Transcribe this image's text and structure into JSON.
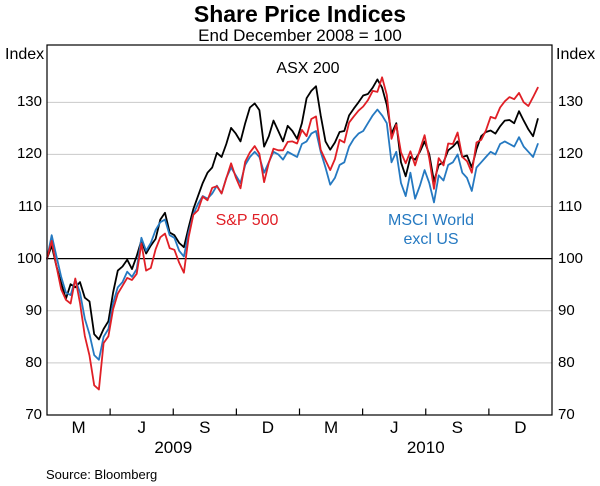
{
  "page": {
    "title": "Share Price Indices",
    "subtitle": "End December 2008 = 100",
    "source": "Source: Bloomberg",
    "y_axis_label_left": "Index",
    "y_axis_label_right": "Index"
  },
  "chart_data": {
    "type": "line",
    "title": "Share Price Indices",
    "subtitle": "End December 2008 = 100",
    "source": "Source: Bloomberg",
    "legend_position": "inline-annotations",
    "grid": true,
    "y_axis": {
      "label": "Index",
      "ticks": [
        70,
        80,
        90,
        100,
        110,
        120,
        130
      ],
      "gridlines": [
        80,
        90,
        110,
        120,
        130
      ],
      "reference_line": 100,
      "ylim": [
        70,
        141
      ],
      "gridline_color": "#c9c9c9"
    },
    "x_axis": {
      "unit": "months since end December 2008",
      "xlim": [
        0,
        24
      ],
      "quarter_ticks": [
        3,
        6,
        9,
        12,
        15,
        18,
        21
      ],
      "month_labels": [
        {
          "text": "M",
          "month": 1.5
        },
        {
          "text": "J",
          "month": 4.5
        },
        {
          "text": "S",
          "month": 7.5
        },
        {
          "text": "D",
          "month": 10.5
        },
        {
          "text": "M",
          "month": 13.5
        },
        {
          "text": "J",
          "month": 16.5
        },
        {
          "text": "S",
          "month": 19.5
        },
        {
          "text": "D",
          "month": 22.5
        }
      ],
      "year_labels": [
        {
          "text": "2009",
          "month": 6
        },
        {
          "text": "2010",
          "month": 18
        }
      ]
    },
    "series": [
      {
        "name": "ASX 200",
        "color": "#000000",
        "start_month": 0,
        "month_step": 0.2243,
        "values": [
          100,
          102.5,
          98.6,
          95.3,
          92.3,
          95.1,
          94.5,
          95.5,
          92.5,
          91.8,
          85.5,
          84.5,
          86.5,
          88.0,
          93.5,
          97.7,
          98.5,
          99.8,
          98.0,
          100.5,
          103.5,
          101.0,
          102.5,
          103.8,
          107.5,
          108.8,
          105.0,
          104.5,
          103.0,
          102.2,
          106.0,
          109.5,
          112.0,
          114.5,
          116.5,
          117.5,
          120.3,
          119.5,
          122.0,
          125.1,
          124.0,
          122.5,
          126.0,
          129.0,
          129.8,
          128.5,
          121.5,
          123.5,
          126.5,
          124.5,
          122.5,
          125.5,
          124.5,
          123.0,
          126.0,
          130.8,
          132.2,
          133.1,
          127.5,
          122.5,
          120.9,
          122.3,
          124.3,
          124.5,
          127.5,
          128.8,
          130.0,
          131.3,
          131.6,
          132.8,
          134.4,
          132.8,
          129.5,
          124.0,
          126.0,
          118.5,
          115.8,
          119.5,
          119.0,
          120.5,
          122.5,
          120.0,
          114.8,
          118.0,
          118.5,
          120.8,
          121.5,
          122.5,
          119.5,
          119.8,
          117.5,
          121.0,
          123.5,
          124.3,
          124.6,
          124.0,
          125.4,
          126.5,
          126.6,
          126.0,
          128.3,
          126.5,
          124.8,
          123.5,
          126.8
        ]
      },
      {
        "name": "S&P 500",
        "color": "#e01f26",
        "start_month": 0,
        "month_step": 0.2243,
        "values": [
          100,
          103.4,
          98.6,
          94.1,
          92.1,
          91.4,
          96.2,
          91.5,
          85.2,
          81.4,
          75.7,
          74.9,
          83.8,
          85.1,
          90.3,
          93.3,
          94.8,
          96.3,
          95.9,
          97.1,
          102.9,
          97.7,
          98.2,
          101.8,
          104.1,
          104.8,
          102.0,
          101.7,
          99.2,
          97.3,
          104.1,
          108.4,
          109.3,
          111.9,
          111.2,
          113.6,
          113.9,
          112.5,
          115.4,
          118.3,
          115.6,
          113.5,
          118.6,
          120.4,
          121.6,
          120.1,
          114.7,
          118.4,
          121.1,
          120.8,
          120.8,
          122.4,
          122.5,
          122.1,
          124.7,
          123.5,
          126.8,
          127.3,
          120.9,
          118.9,
          117.0,
          119.1,
          122.8,
          122.3,
          126.1,
          127.3,
          128.4,
          129.2,
          130.4,
          132.2,
          132.0,
          134.8,
          131.4,
          123.0,
          125.7,
          120.4,
          118.3,
          120.6,
          117.9,
          120.9,
          123.7,
          119.2,
          113.4,
          119.3,
          117.9,
          122.1,
          122.0,
          124.2,
          119.5,
          118.7,
          116.5,
          122.3,
          122.8,
          124.6,
          127.2,
          126.9,
          129.0,
          130.2,
          131.0,
          130.6,
          131.8,
          130.0,
          129.3,
          131.0,
          132.8
        ]
      },
      {
        "name": "MSCI World excl US",
        "label_lines": [
          "MSCI World",
          "excl US"
        ],
        "color": "#2579c1",
        "start_month": 0,
        "month_step": 0.2243,
        "values": [
          100,
          104.5,
          100.5,
          96.5,
          93.5,
          93.0,
          96.0,
          93.5,
          88.5,
          85.5,
          81.5,
          80.6,
          85.0,
          86.5,
          91.5,
          94.5,
          95.5,
          97.5,
          96.5,
          98.0,
          104.0,
          101.5,
          103.0,
          105.5,
          107.0,
          107.5,
          104.5,
          104.0,
          101.5,
          100.4,
          105.0,
          108.5,
          110.5,
          112.0,
          111.5,
          112.5,
          114.0,
          112.5,
          115.5,
          117.5,
          116.0,
          114.5,
          118.0,
          119.5,
          120.5,
          119.5,
          116.5,
          118.5,
          120.5,
          120.0,
          119.0,
          120.5,
          120.0,
          119.5,
          122.0,
          122.5,
          124.0,
          124.5,
          120.5,
          117.5,
          114.2,
          115.5,
          118.0,
          118.5,
          121.5,
          123.0,
          124.0,
          124.5,
          126.0,
          127.5,
          128.6,
          127.5,
          126.0,
          118.5,
          120.5,
          114.5,
          112.0,
          116.5,
          111.5,
          114.0,
          117.0,
          114.5,
          110.8,
          116.0,
          115.0,
          118.0,
          118.5,
          120.0,
          116.5,
          115.5,
          113.0,
          117.5,
          118.5,
          119.5,
          120.5,
          120.0,
          122.0,
          122.5,
          122.0,
          121.5,
          123.3,
          121.5,
          120.5,
          119.5,
          122.0
        ]
      }
    ]
  }
}
